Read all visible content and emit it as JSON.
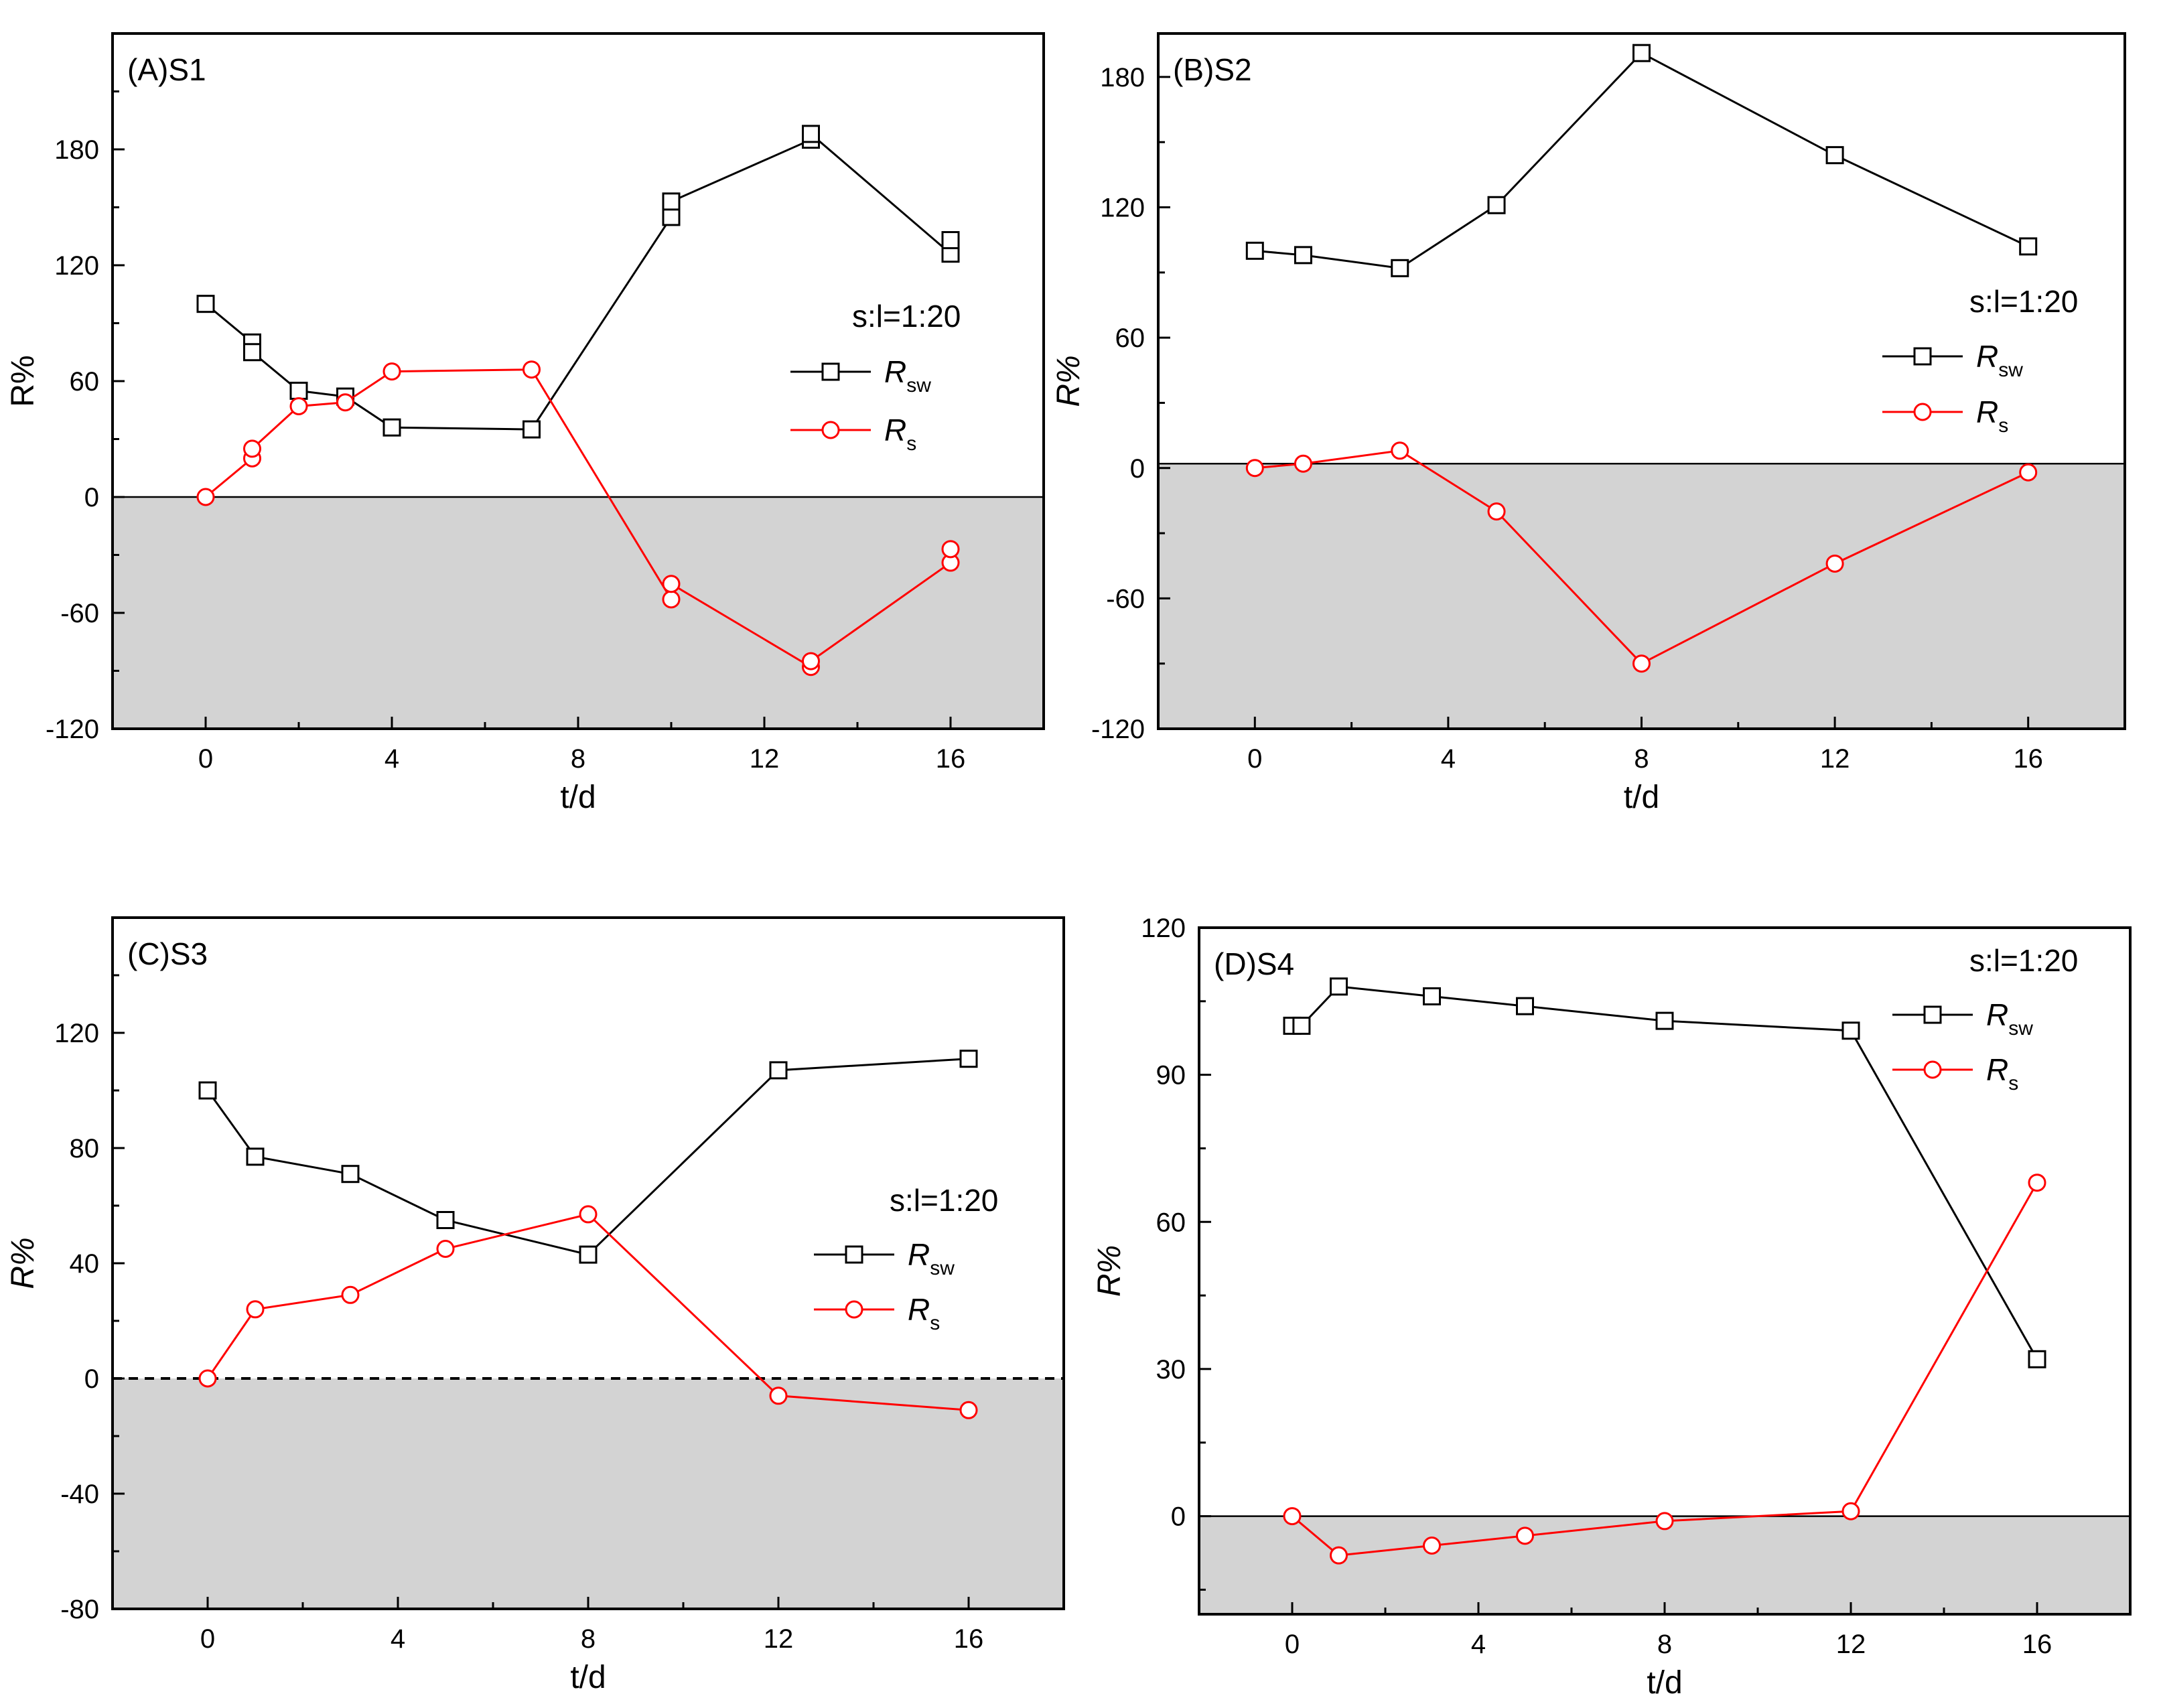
{
  "chart_data": [
    {
      "type": "line",
      "title": "(A)S1",
      "xlabel": "t/d",
      "ylabel": "R%",
      "ylabel_italic": false,
      "xlim": [
        -2,
        18
      ],
      "ylim": [
        -120,
        240
      ],
      "xticks": [
        0,
        4,
        8,
        12,
        16
      ],
      "yticks": [
        -120,
        -60,
        0,
        60,
        120,
        180
      ],
      "xtick_labels": [
        "0",
        "4",
        "8",
        "12",
        "16"
      ],
      "ytick_labels": [
        "-120",
        "-60",
        "0",
        "60",
        "120",
        "180"
      ],
      "shade_below": 0,
      "zero_line": "solid",
      "legend": {
        "title": "s:l=1:20",
        "position": "right-middle",
        "entries": [
          {
            "main": "R",
            "sub": "sw"
          },
          {
            "main": "R",
            "sub": "s"
          }
        ]
      },
      "series": [
        {
          "name": "Rsw",
          "color": "#000000",
          "marker": "square",
          "x": [
            0,
            1,
            1,
            2,
            3,
            4,
            7,
            10,
            10,
            13,
            13,
            16,
            16
          ],
          "y": [
            100,
            80,
            75,
            55,
            52,
            36,
            35,
            145,
            153,
            185,
            188,
            126,
            133
          ]
        },
        {
          "name": "Rs",
          "color": "#ff0000",
          "marker": "circle",
          "x": [
            0,
            1,
            1,
            2,
            3,
            4,
            7,
            10,
            10,
            13,
            13,
            16,
            16
          ],
          "y": [
            0,
            20,
            25,
            47,
            49,
            65,
            66,
            -53,
            -45,
            -88,
            -85,
            -34,
            -27
          ]
        }
      ]
    },
    {
      "type": "line",
      "title": "(B)S2",
      "xlabel": "t/d",
      "ylabel": "R%",
      "ylabel_italic": true,
      "xlim": [
        -2,
        18
      ],
      "ylim": [
        -120,
        200
      ],
      "xticks": [
        0,
        4,
        8,
        12,
        16
      ],
      "yticks": [
        -120,
        -60,
        0,
        60,
        120,
        180
      ],
      "xtick_labels": [
        "0",
        "4",
        "8",
        "12",
        "16"
      ],
      "ytick_labels": [
        "-120",
        "-60",
        "0",
        "60",
        "120",
        "180"
      ],
      "shade_below": 2,
      "zero_line": "solid",
      "legend": {
        "title": "s:l=1:20",
        "position": "right-middle",
        "entries": [
          {
            "main": "R",
            "sub": "sw"
          },
          {
            "main": "R",
            "sub": "s"
          }
        ]
      },
      "series": [
        {
          "name": "Rsw",
          "color": "#000000",
          "marker": "square",
          "x": [
            0,
            1,
            3,
            5,
            8,
            12,
            16
          ],
          "y": [
            100,
            98,
            92,
            121,
            191,
            144,
            102
          ]
        },
        {
          "name": "Rs",
          "color": "#ff0000",
          "marker": "circle",
          "x": [
            0,
            1,
            3,
            5,
            8,
            12,
            16
          ],
          "y": [
            0,
            2,
            8,
            -20,
            -90,
            -44,
            -2
          ]
        }
      ]
    },
    {
      "type": "line",
      "title": "(C)S3",
      "xlabel": "t/d",
      "ylabel": "R%",
      "ylabel_italic": true,
      "xlim": [
        -2,
        18
      ],
      "ylim": [
        -80,
        160
      ],
      "xticks": [
        0,
        4,
        8,
        12,
        16
      ],
      "yticks": [
        -80,
        -40,
        0,
        40,
        80,
        120
      ],
      "xtick_labels": [
        "0",
        "4",
        "8",
        "12",
        "16"
      ],
      "ytick_labels": [
        "-80",
        "-40",
        "0",
        "40",
        "80",
        "120"
      ],
      "shade_below": 0,
      "zero_line": "dashed",
      "legend": {
        "title": "s:l=1:20",
        "position": "right-middle",
        "entries": [
          {
            "main": "R",
            "sub": "sw"
          },
          {
            "main": "R",
            "sub": "s"
          }
        ]
      },
      "series": [
        {
          "name": "Rsw",
          "color": "#000000",
          "marker": "square",
          "x": [
            0,
            1,
            3,
            5,
            8,
            12,
            16
          ],
          "y": [
            100,
            77,
            71,
            55,
            43,
            107,
            111
          ]
        },
        {
          "name": "Rs",
          "color": "#ff0000",
          "marker": "circle",
          "x": [
            0,
            1,
            3,
            5,
            8,
            12,
            16
          ],
          "y": [
            0,
            24,
            29,
            45,
            57,
            -6,
            -11
          ]
        }
      ]
    },
    {
      "type": "line",
      "title": "(D)S4",
      "xlabel": "t/d",
      "ylabel": "R%",
      "ylabel_italic": true,
      "xlim": [
        -2,
        18
      ],
      "ylim": [
        -20,
        120
      ],
      "xticks": [
        0,
        4,
        8,
        12,
        16
      ],
      "yticks": [
        0,
        30,
        60,
        90,
        120
      ],
      "xtick_labels": [
        "0",
        "4",
        "8",
        "12",
        "16"
      ],
      "ytick_labels": [
        "0",
        "30",
        "60",
        "90",
        "120"
      ],
      "shade_below": 0,
      "zero_line": "solid",
      "legend": {
        "title": "s:l=1:20",
        "position": "top-right",
        "entries": [
          {
            "main": "R",
            "sub": "sw"
          },
          {
            "main": "R",
            "sub": "s"
          }
        ]
      },
      "series": [
        {
          "name": "Rsw",
          "color": "#000000",
          "marker": "square",
          "x": [
            0,
            0.2,
            1,
            3,
            5,
            8,
            12,
            16
          ],
          "y": [
            100,
            100,
            108,
            106,
            104,
            101,
            99,
            32
          ]
        },
        {
          "name": "Rs",
          "color": "#ff0000",
          "marker": "circle",
          "x": [
            0,
            1,
            3,
            5,
            8,
            12,
            16
          ],
          "y": [
            0,
            -8,
            -6,
            -4,
            -1,
            1,
            68
          ]
        }
      ]
    }
  ]
}
